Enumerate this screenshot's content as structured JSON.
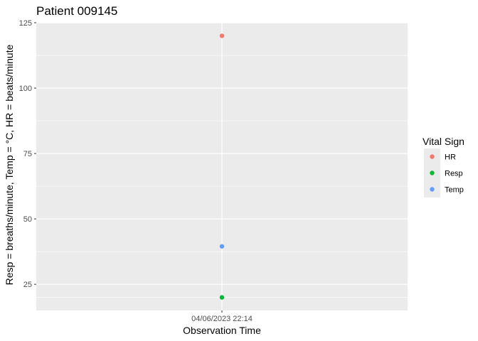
{
  "chart_data": {
    "type": "scatter",
    "title": "Patient 009145",
    "xlabel": "Observation Time",
    "ylabel": "Resp = breaths/minute,  Temp = °C,  HR = beats/minute",
    "x_categories": [
      "04/06/2023 22:14"
    ],
    "ylim": [
      15,
      125
    ],
    "y_ticks": [
      25,
      50,
      75,
      100,
      125
    ],
    "grid": true,
    "legend": {
      "title": "Vital Sign",
      "placement": "right"
    },
    "series": [
      {
        "name": "HR",
        "color": "#F8766D",
        "points": [
          {
            "x": "04/06/2023 22:14",
            "y": 120
          }
        ]
      },
      {
        "name": "Resp",
        "color": "#00BA38",
        "points": [
          {
            "x": "04/06/2023 22:14",
            "y": 20
          }
        ]
      },
      {
        "name": "Temp",
        "color": "#619CFF",
        "points": [
          {
            "x": "04/06/2023 22:14",
            "y": 39.5
          }
        ]
      }
    ]
  }
}
